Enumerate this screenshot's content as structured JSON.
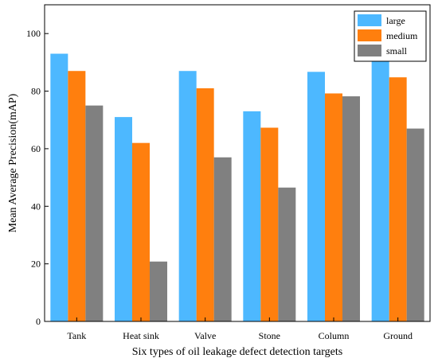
{
  "chart_data": {
    "type": "bar",
    "title": "",
    "xlabel": "Six types of oil leakage defect detection targets",
    "ylabel": "Mean Average Precision(mAP)",
    "ylim": [
      0,
      110
    ],
    "yticks": [
      0,
      20,
      40,
      60,
      80,
      100
    ],
    "categories": [
      "Tank",
      "Heat sink",
      "Valve",
      "Stone",
      "Column",
      "Ground"
    ],
    "series": [
      {
        "name": "large",
        "color": "#4db8ff",
        "values": [
          93,
          71,
          87,
          73,
          86.7,
          91
        ]
      },
      {
        "name": "medium",
        "color": "#ff7f0e",
        "values": [
          87,
          62,
          81,
          67.3,
          79.2,
          84.8
        ]
      },
      {
        "name": "small",
        "color": "#808080",
        "values": [
          75,
          20.8,
          57,
          46.5,
          78.2,
          67
        ]
      }
    ],
    "grid": false,
    "legend_position": "top-right"
  }
}
